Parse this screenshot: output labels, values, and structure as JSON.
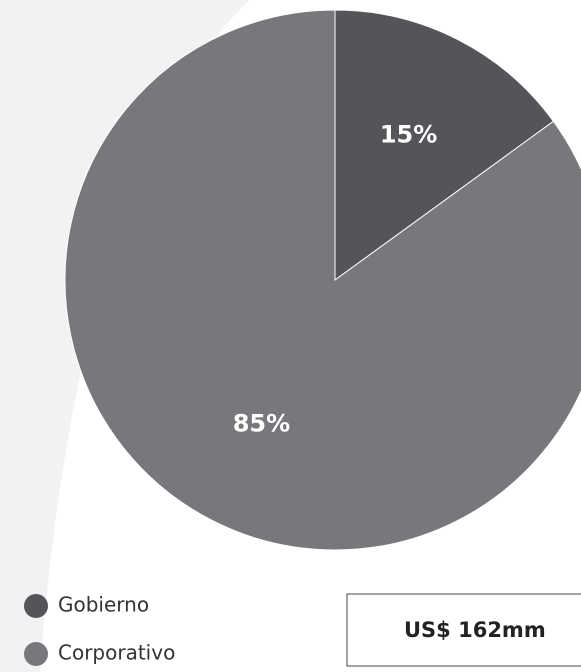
{
  "chart_data": {
    "type": "pie",
    "categories": [
      "Gobierno",
      "Corporativo"
    ],
    "values": [
      15,
      85
    ],
    "value_labels": [
      "15%",
      "85%"
    ],
    "colors": [
      "#545559",
      "#77787c"
    ],
    "annotation": "US$ 162mm"
  }
}
